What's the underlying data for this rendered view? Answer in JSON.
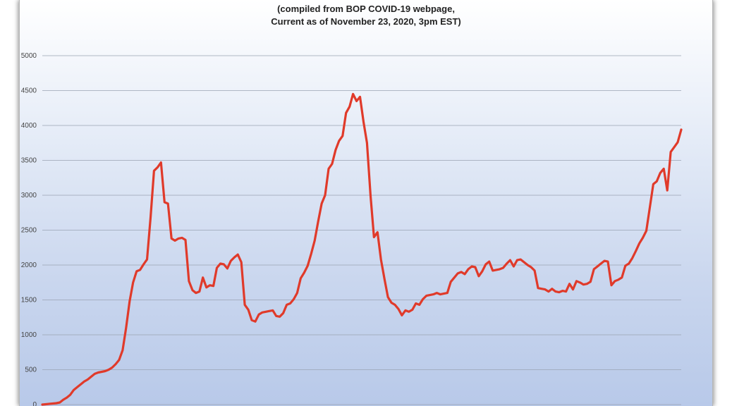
{
  "chart_data": {
    "type": "line",
    "title": "",
    "subtitle_lines": [
      "(compiled from BOP COVID-19 webpage,",
      "Current as of November 23, 2020, 3pm EST)"
    ],
    "xlabel": "",
    "ylabel": "",
    "ylim": [
      0,
      5000
    ],
    "yticks": [
      0,
      500,
      1000,
      1500,
      2000,
      2500,
      3000,
      3500,
      4000,
      4500,
      5000
    ],
    "grid": true,
    "line_color": "#e03a2a",
    "series": [
      {
        "values": [
          0,
          5,
          10,
          15,
          20,
          30,
          70,
          100,
          140,
          210,
          250,
          290,
          330,
          360,
          400,
          440,
          460,
          470,
          480,
          500,
          530,
          580,
          640,
          780,
          1100,
          1480,
          1750,
          1910,
          1930,
          2010,
          2080,
          2680,
          3350,
          3400,
          3470,
          2900,
          2880,
          2380,
          2350,
          2380,
          2390,
          2360,
          1770,
          1640,
          1600,
          1620,
          1820,
          1680,
          1710,
          1700,
          1960,
          2020,
          2010,
          1950,
          2060,
          2110,
          2150,
          2040,
          1430,
          1360,
          1210,
          1190,
          1290,
          1320,
          1330,
          1340,
          1350,
          1270,
          1260,
          1310,
          1430,
          1450,
          1510,
          1600,
          1810,
          1890,
          1990,
          2160,
          2350,
          2620,
          2880,
          3000,
          3380,
          3450,
          3650,
          3780,
          3850,
          4180,
          4270,
          4450,
          4350,
          4410,
          4050,
          3750,
          3000,
          2400,
          2470,
          2080,
          1800,
          1540,
          1460,
          1430,
          1370,
          1280,
          1350,
          1330,
          1360,
          1450,
          1430,
          1510,
          1560,
          1570,
          1580,
          1600,
          1580,
          1590,
          1600,
          1760,
          1820,
          1880,
          1900,
          1870,
          1940,
          1980,
          1970,
          1840,
          1910,
          2010,
          2050,
          1920,
          1930,
          1940,
          1960,
          2020,
          2070,
          1980,
          2070,
          2080,
          2040,
          2000,
          1970,
          1920,
          1670,
          1660,
          1650,
          1620,
          1660,
          1620,
          1610,
          1630,
          1620,
          1730,
          1650,
          1770,
          1750,
          1720,
          1730,
          1760,
          1940,
          1980,
          2020,
          2060,
          2050,
          1710,
          1770,
          1790,
          1820,
          1990,
          2020,
          2100,
          2200,
          2310,
          2390,
          2490,
          2820,
          3160,
          3200,
          3320,
          3380,
          3070,
          3620,
          3690,
          3760,
          3940
        ]
      }
    ]
  }
}
